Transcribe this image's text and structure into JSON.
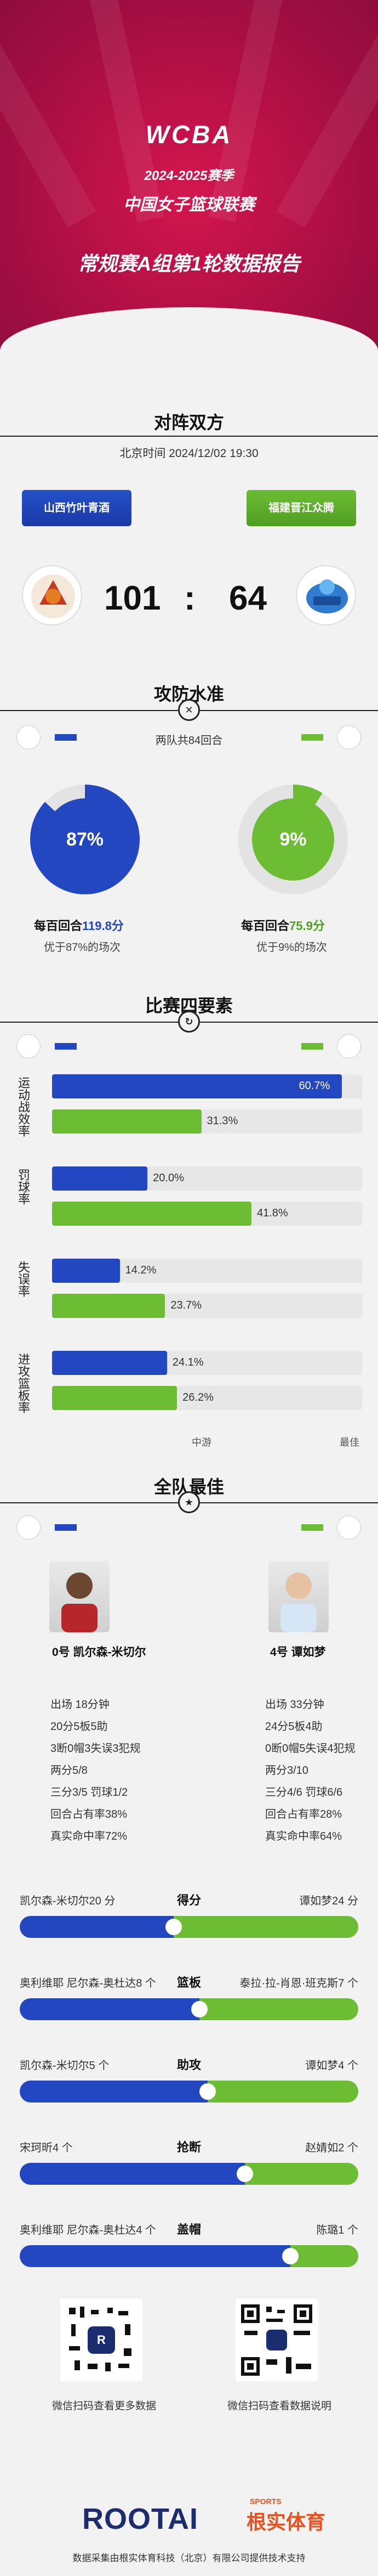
{
  "header": {
    "logo": "WCBA",
    "season": "2024-2025赛季",
    "league": "中国女子篮球联赛",
    "report_title": "常规赛A组第1轮数据报告"
  },
  "matchup": {
    "title": "对阵双方",
    "time": "北京时间 2024/12/02 19:30",
    "home_team": "山西竹叶青酒",
    "away_team": "福建晋江众腾",
    "home_score": "101",
    "colon": ":",
    "away_score": "64"
  },
  "offense_defense": {
    "title": "攻防水准",
    "possessions": "两队共84回合",
    "home_pct": "87%",
    "home_pct_value": 87,
    "away_pct": "9%",
    "away_pct_value": 9,
    "home_rating_prefix": "每百回合",
    "home_rating": "119.8分",
    "away_rating_prefix": "每百回合",
    "away_rating": "75.9分",
    "home_note": "优于87%的场次",
    "away_note": "优于9%的场次"
  },
  "four_factors": {
    "title": "比赛四要素",
    "rows": [
      {
        "label": "运动战效率",
        "home": "60.7%",
        "home_val": 60.7,
        "away": "31.3%",
        "away_val": 31.3
      },
      {
        "label": "罚球率",
        "home": "20.0%",
        "home_val": 20.0,
        "away": "41.8%",
        "away_val": 41.8
      },
      {
        "label": "失误率",
        "home": "14.2%",
        "home_val": 14.2,
        "away": "23.7%",
        "away_val": 23.7
      },
      {
        "label": "进攻篮板率",
        "home": "24.1%",
        "home_val": 24.1,
        "away": "26.2%",
        "away_val": 26.2
      }
    ],
    "axis_mid": "中游",
    "axis_best": "最佳"
  },
  "best": {
    "title": "全队最佳",
    "home_player": "0号 凯尔森-米切尔",
    "away_player": "4号 谭如梦",
    "home_stats": [
      "出场 18分钟",
      "20分5板5助",
      "3断0帽3失误3犯规",
      "两分5/8",
      "三分3/5 罚球1/2",
      "回合占有率38%",
      "真实命中率72%"
    ],
    "away_stats": [
      "出场 33分钟",
      "24分5板4助",
      "0断0帽5失误4犯规",
      "两分3/10",
      "三分4/6 罚球6/6",
      "回合占有率28%",
      "真实命中率64%"
    ],
    "comparisons": [
      {
        "label": "得分",
        "left": "凯尔森-米切尔20 分",
        "right": "谭如梦24 分",
        "ratio": 0.455
      },
      {
        "label": "篮板",
        "left": "奥利维耶 尼尔森-奥杜达8 个",
        "right": "泰拉·拉-肖恩·班克斯7 个",
        "ratio": 0.53
      },
      {
        "label": "助攻",
        "left": "凯尔森-米切尔5 个",
        "right": "谭如梦4 个",
        "ratio": 0.555
      },
      {
        "label": "抢断",
        "left": "宋珂昕4 个",
        "right": "赵婧如2 个",
        "ratio": 0.665
      },
      {
        "label": "盖帽",
        "left": "奥利维耶 尼尔森-奥杜达4 个",
        "right": "陈璐1 个",
        "ratio": 0.8
      }
    ]
  },
  "footer": {
    "qr_left_caption": "微信扫码查看更多数据",
    "qr_right_caption": "微信扫码查看数据说明",
    "brand": "ROOTAI",
    "brand_cn": "根实体育",
    "brand_sports": "SPORTS",
    "credit": "数据采集由根实体育科技（北京）有限公司提供技术支持"
  },
  "colors": {
    "home": "#2347c0",
    "away": "#6cbd34",
    "accent": "#b41046"
  }
}
